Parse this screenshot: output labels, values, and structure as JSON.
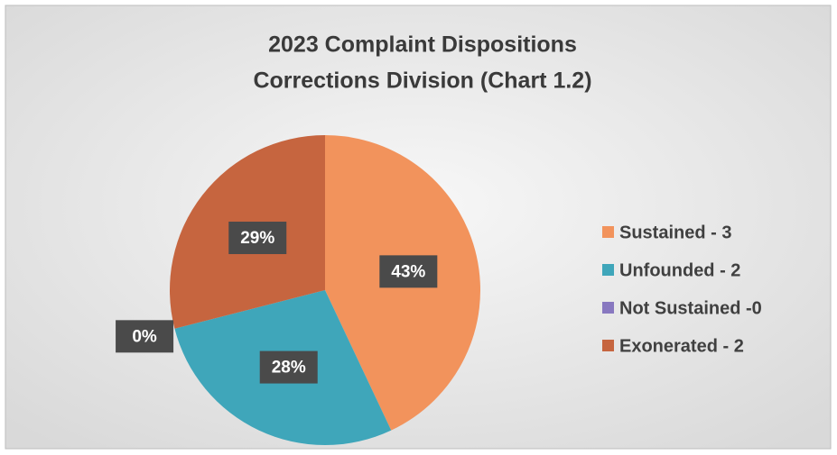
{
  "chart_data": {
    "type": "pie",
    "title": [
      "2023 Complaint Dispositions",
      "Corrections Division (Chart 1.2)"
    ],
    "categories": [
      "Sustained - 3",
      "Unfounded - 2",
      "Not Sustained -0",
      "Exonerated - 2"
    ],
    "values": [
      43,
      28,
      0,
      29
    ],
    "value_labels": [
      "43%",
      "28%",
      "0%",
      "29%"
    ],
    "colors": [
      "#f2935c",
      "#3fa6ba",
      "#8878c0",
      "#c6653f"
    ],
    "legend": "right"
  }
}
